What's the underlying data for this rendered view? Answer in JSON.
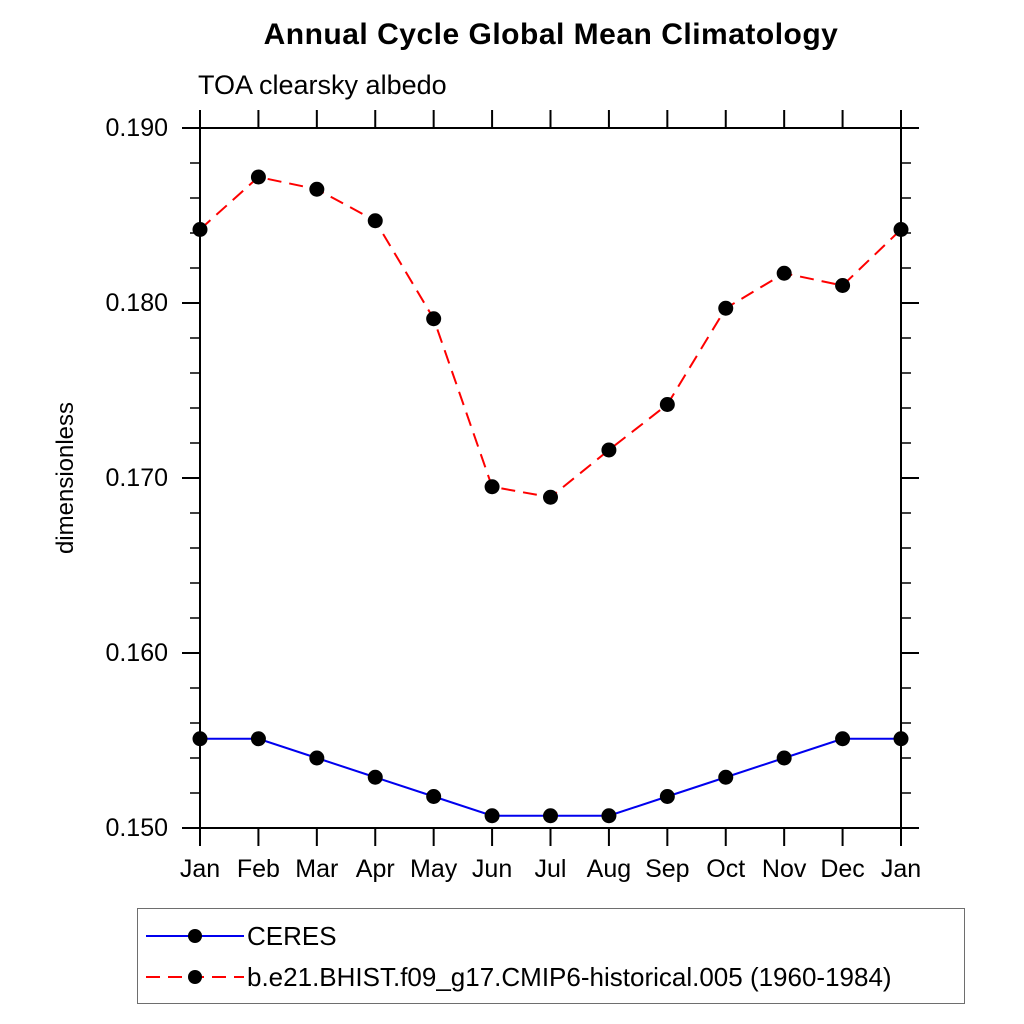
{
  "chart_data": {
    "type": "line",
    "title": "Annual Cycle Global Mean Climatology",
    "subtitle": "TOA clearsky albedo",
    "ylabel": "dimensionless",
    "categories": [
      "Jan",
      "Feb",
      "Mar",
      "Apr",
      "May",
      "Jun",
      "Jul",
      "Aug",
      "Sep",
      "Oct",
      "Nov",
      "Dec",
      "Jan"
    ],
    "ylim": [
      0.15,
      0.19
    ],
    "y_major_ticks": [
      0.15,
      0.16,
      0.17,
      0.18,
      0.19
    ],
    "y_tick_labels": [
      "0.150",
      "0.160",
      "0.170",
      "0.180",
      "0.190"
    ],
    "y_minor_step": 0.002,
    "grid": false,
    "legend_position": "bottom-left",
    "series": [
      {
        "name": "CERES",
        "line_style": "solid",
        "color": "#0000ee",
        "marker": "circle",
        "marker_color": "#000000",
        "values": [
          0.1551,
          0.1551,
          0.154,
          0.1529,
          0.1518,
          0.1507,
          0.1507,
          0.1507,
          0.1518,
          0.1529,
          0.154,
          0.1551,
          0.1551
        ]
      },
      {
        "name": "b.e21.BHIST.f09_g17.CMIP6-historical.005 (1960-1984)",
        "line_style": "dashed",
        "color": "#fe0000",
        "marker": "circle",
        "marker_color": "#000000",
        "values": [
          0.1842,
          0.1872,
          0.1865,
          0.1847,
          0.1791,
          0.1695,
          0.1689,
          0.1716,
          0.1742,
          0.1797,
          0.1817,
          0.181,
          0.1842
        ]
      }
    ],
    "axis_color": "#000000"
  }
}
